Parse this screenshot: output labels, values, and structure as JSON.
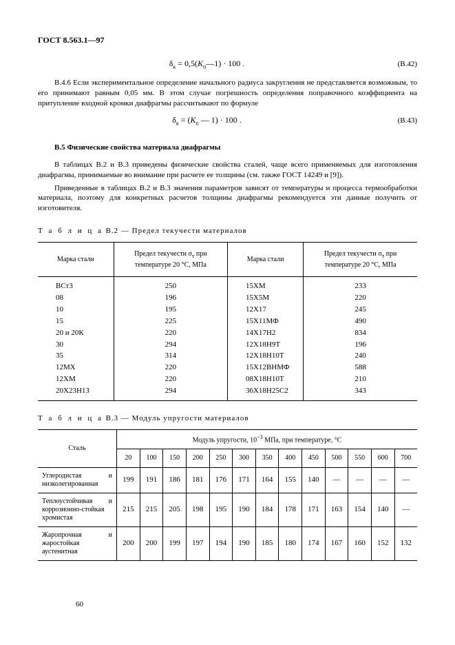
{
  "header": "ГОСТ 8.563.1—97",
  "formula1": {
    "expr": "δ<sub>к</sub> = 0,5(<i>K</i><sub>п</sub>—1) · 100 .",
    "num": "(В.42)"
  },
  "para1": "В.4.6  Если экспериментальное определение начального радиуса закругления не представляется возможным, то его принимают равным 0,05 мм. В этом случае погрешность определения поправочного коэффициента на притупление входной кромки диафрагмы рассчитывают по формуле",
  "formula2": {
    "expr": "δ<sub>к</sub> = (<i>K</i><sub>п</sub> — 1) · 100 .",
    "num": "(В.43)"
  },
  "sectionB5": "В.5  Физические свойства материала диафрагмы",
  "para2": "В таблицах В.2 и В.3 приведены физические свойства сталей, чаще всего применяемых для изготовления диафрагмы, принимаемые во внимание при расчете ее толщины (см. также ГОСТ 14249 и [9]).",
  "para3": "Приведенные в таблицах В.2 и В.3 значения параметров зависят от температуры и процесса термообработки материала, поэтому для конкретных расчетов толщины диафрагмы рекомендуется эти данные получить от изготовителя.",
  "tableB2": {
    "caption_label": "Т а б л и ц а",
    "caption_rest": "  В.2 — Предел текучести материалов",
    "head1": "Марка стали",
    "head2": "Предел текучести σ<sub>т</sub> при температуре 20 °С, МПа",
    "rows": [
      [
        "ВСт3",
        "250",
        "15ХМ",
        "233"
      ],
      [
        "08",
        "196",
        "15Х5М",
        "220"
      ],
      [
        "10",
        "195",
        "12Х17",
        "245"
      ],
      [
        "15",
        "225",
        "15Х11МФ",
        "490"
      ],
      [
        "20  и 20К",
        "220",
        "14Х17Н2",
        "834"
      ],
      [
        "30",
        "294",
        "12Х18Н9Т",
        "196"
      ],
      [
        "35",
        "314",
        "12Х18Н10Т",
        "240"
      ],
      [
        "12МХ",
        "220",
        "15Х12ВНМФ",
        "588"
      ],
      [
        "12ХМ",
        "220",
        "08Х18Н10Т",
        "210"
      ],
      [
        "20Х23Н13",
        "294",
        "36Х18Н25С2",
        "343"
      ]
    ]
  },
  "tableB3": {
    "caption_label": "Т а б л и ц а",
    "caption_rest": "  В.3 — Модуль упругости материалов",
    "head_steel": "Сталь",
    "head_span": "Модуль упругости, 10<sup>−3</sup> МПа, при температуре, °С",
    "temps": [
      "20",
      "100",
      "150",
      "200",
      "250",
      "300",
      "350",
      "400",
      "450",
      "500",
      "550",
      "600",
      "700"
    ],
    "rows": [
      {
        "name": "Углеродистая и низколегированная",
        "v": [
          "199",
          "191",
          "186",
          "181",
          "176",
          "171",
          "164",
          "155",
          "140",
          "—",
          "—",
          "—",
          "—"
        ]
      },
      {
        "name": "Теплоустойчивая и коррозионно-стойкая хромистая",
        "v": [
          "215",
          "215",
          "205",
          "198",
          "195",
          "190",
          "184",
          "178",
          "171",
          "163",
          "154",
          "140",
          "—"
        ]
      },
      {
        "name": "Жаропрочная и жаростойкая аустенитная",
        "v": [
          "200",
          "200",
          "199",
          "197",
          "194",
          "190",
          "185",
          "180",
          "174",
          "167",
          "160",
          "152",
          "132"
        ]
      }
    ]
  },
  "pagenum": "60"
}
